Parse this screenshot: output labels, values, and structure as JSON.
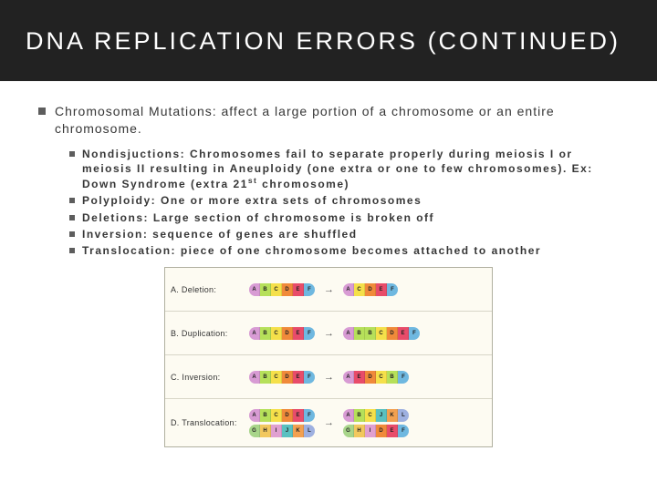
{
  "header": {
    "title": "DNA REPLICATION ERRORS (CONTINUED)"
  },
  "bullet": {
    "main": "Chromosomal Mutations: affect a large portion of a chromosome or an entire chromosome."
  },
  "sub": [
    "Nondisjuctions: Chromosomes fail to separate properly during meiosis I or meiosis II resulting in Aneuploidy (one extra or one to few chromosomes). Ex: Down Syndrome (extra 21",
    "Polyploidy: One or more extra sets of chromosomes",
    "Deletions: Large section of chromosome is broken off",
    "Inversion: sequence of genes are shuffled",
    "Translocation: piece of one chromosome becomes attached to another"
  ],
  "sub0_suffix_sup": "st",
  "sub0_suffix_tail": " chromosome)",
  "diagram": {
    "background": "#fdfbf2",
    "rows": [
      {
        "label": "A. Deletion:"
      },
      {
        "label": "B. Duplication:"
      },
      {
        "label": "C. Inversion:"
      },
      {
        "label": "D. Translocation:"
      }
    ],
    "colors": {
      "A": "#d89bd4",
      "B": "#b6e05a",
      "C": "#f5e04a",
      "D": "#f08a3a",
      "E": "#e84c6a",
      "F": "#6fb8e0",
      "G": "#a8d58a",
      "H": "#f2c85e",
      "I": "#e0a0d0",
      "J": "#5ac0c0",
      "K": "#f2a050",
      "L": "#9eb0e0"
    },
    "deletion": {
      "before": [
        "A",
        "B",
        "C",
        "D",
        "E",
        "F"
      ],
      "after": [
        "A",
        "C",
        "D",
        "E",
        "F"
      ]
    },
    "duplication": {
      "before": [
        "A",
        "B",
        "C",
        "D",
        "E",
        "F"
      ],
      "after": [
        "A",
        "B",
        "B",
        "C",
        "D",
        "E",
        "F"
      ]
    },
    "inversion": {
      "before": [
        "A",
        "B",
        "C",
        "D",
        "E",
        "F"
      ],
      "after": [
        "A",
        "E",
        "D",
        "C",
        "B",
        "F"
      ]
    },
    "translocation": {
      "before": [
        [
          "A",
          "B",
          "C",
          "D",
          "E",
          "F"
        ],
        [
          "G",
          "H",
          "I",
          "J",
          "K",
          "L"
        ]
      ],
      "after": [
        [
          "A",
          "B",
          "C",
          "J",
          "K",
          "L"
        ],
        [
          "G",
          "H",
          "I",
          "D",
          "E",
          "F"
        ]
      ]
    }
  }
}
